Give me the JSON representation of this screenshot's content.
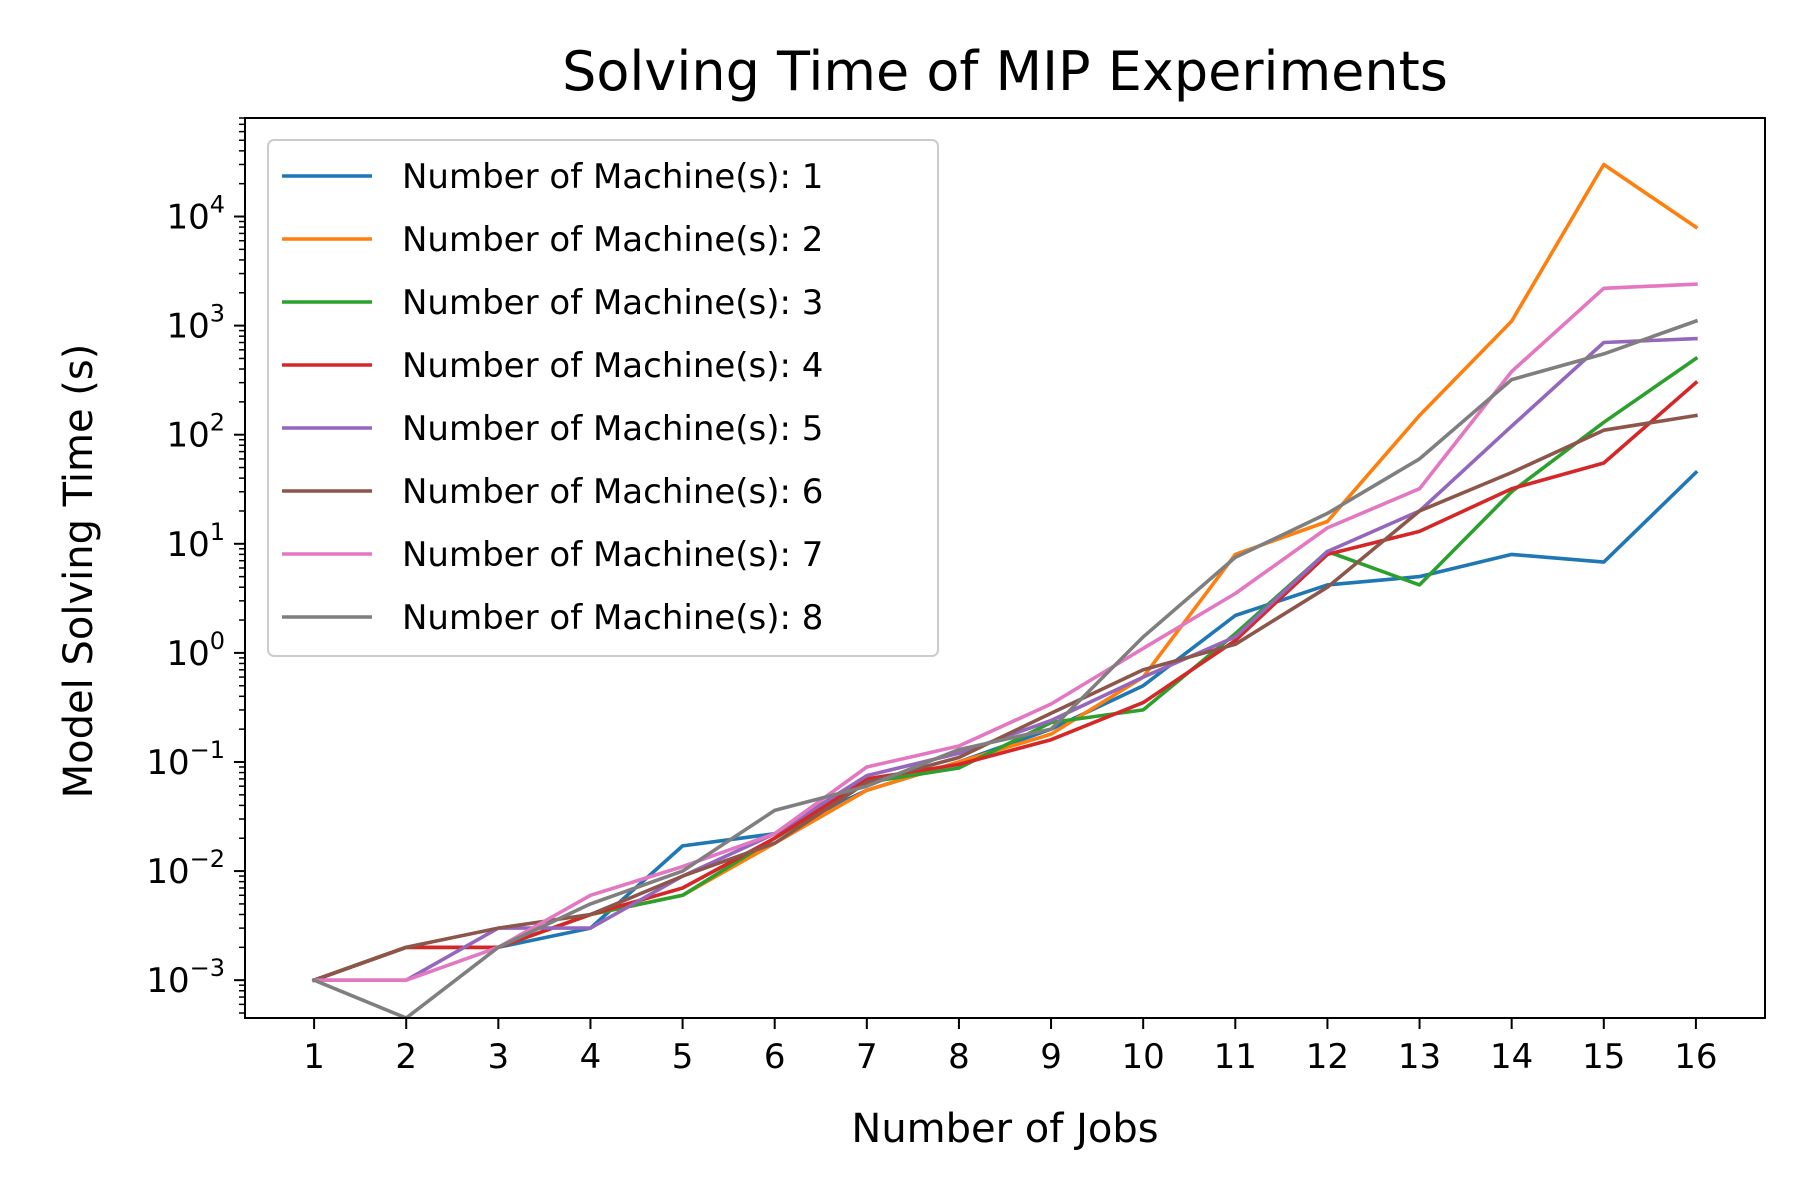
{
  "chart_data": {
    "type": "line",
    "title": "Solving Time of MIP Experiments",
    "xlabel": "Number of Jobs",
    "ylabel": "Model Solving Time (s)",
    "y_scale": "log",
    "ylim": [
      0.00045,
      80000
    ],
    "xlim": [
      0.25,
      16.75
    ],
    "x": [
      1,
      2,
      3,
      4,
      5,
      6,
      7,
      8,
      9,
      10,
      11,
      12,
      13,
      14,
      15,
      16
    ],
    "x_tick_labels": [
      "1",
      "2",
      "3",
      "4",
      "5",
      "6",
      "7",
      "8",
      "9",
      "10",
      "11",
      "12",
      "13",
      "14",
      "15",
      "16"
    ],
    "y_ticks": [
      {
        "value": 0.001,
        "base": "10",
        "exp": "−3"
      },
      {
        "value": 0.01,
        "base": "10",
        "exp": "−2"
      },
      {
        "value": 0.1,
        "base": "10",
        "exp": "−1"
      },
      {
        "value": 1,
        "base": "10",
        "exp": "0"
      },
      {
        "value": 10,
        "base": "10",
        "exp": "1"
      },
      {
        "value": 100,
        "base": "10",
        "exp": "2"
      },
      {
        "value": 1000,
        "base": "10",
        "exp": "3"
      },
      {
        "value": 10000,
        "base": "10",
        "exp": "4"
      }
    ],
    "grid": false,
    "legend_position": "top-left",
    "series": [
      {
        "name": "Number of Machine(s): 1",
        "color": "#1f77b4",
        "values": [
          0.001,
          0.002,
          0.002,
          0.003,
          0.017,
          0.022,
          0.055,
          0.1,
          0.2,
          0.5,
          2.2,
          4.2,
          5.0,
          8.0,
          6.8,
          45
        ]
      },
      {
        "name": "Number of Machine(s): 2",
        "color": "#ff7f0e",
        "values": [
          0.001,
          0.002,
          0.002,
          0.004,
          0.006,
          0.018,
          0.055,
          0.1,
          0.18,
          0.6,
          8.0,
          16,
          150,
          1100,
          30000,
          8000
        ]
      },
      {
        "name": "Number of Machine(s): 3",
        "color": "#2ca02c",
        "values": [
          0.001,
          0.002,
          0.002,
          0.004,
          0.006,
          0.02,
          0.065,
          0.088,
          0.23,
          0.3,
          1.5,
          8.5,
          4.2,
          30,
          130,
          500
        ]
      },
      {
        "name": "Number of Machine(s): 4",
        "color": "#d62728",
        "values": [
          0.001,
          0.002,
          0.002,
          0.004,
          0.007,
          0.02,
          0.07,
          0.095,
          0.16,
          0.35,
          1.3,
          8.0,
          13,
          32,
          55,
          300
        ]
      },
      {
        "name": "Number of Machine(s): 5",
        "color": "#9467bd",
        "values": [
          0.001,
          0.001,
          0.003,
          0.003,
          0.009,
          0.022,
          0.075,
          0.12,
          0.24,
          0.6,
          1.4,
          8.5,
          20,
          120,
          700,
          760
        ]
      },
      {
        "name": "Number of Machine(s): 6",
        "color": "#8c564b",
        "values": [
          0.001,
          0.002,
          0.003,
          0.004,
          0.009,
          0.018,
          0.065,
          0.11,
          0.28,
          0.7,
          1.2,
          4.0,
          20,
          45,
          110,
          150
        ]
      },
      {
        "name": "Number of Machine(s): 7",
        "color": "#e377c2",
        "values": [
          0.001,
          0.001,
          0.002,
          0.006,
          0.011,
          0.022,
          0.09,
          0.14,
          0.34,
          1.1,
          3.5,
          14,
          32,
          380,
          2200,
          2400
        ]
      },
      {
        "name": "Number of Machine(s): 8",
        "color": "#7f7f7f",
        "values": [
          0.001,
          0.0001,
          0.002,
          0.005,
          0.01,
          0.036,
          0.06,
          0.13,
          0.2,
          1.4,
          7.5,
          19,
          60,
          320,
          550,
          1100
        ]
      }
    ]
  }
}
